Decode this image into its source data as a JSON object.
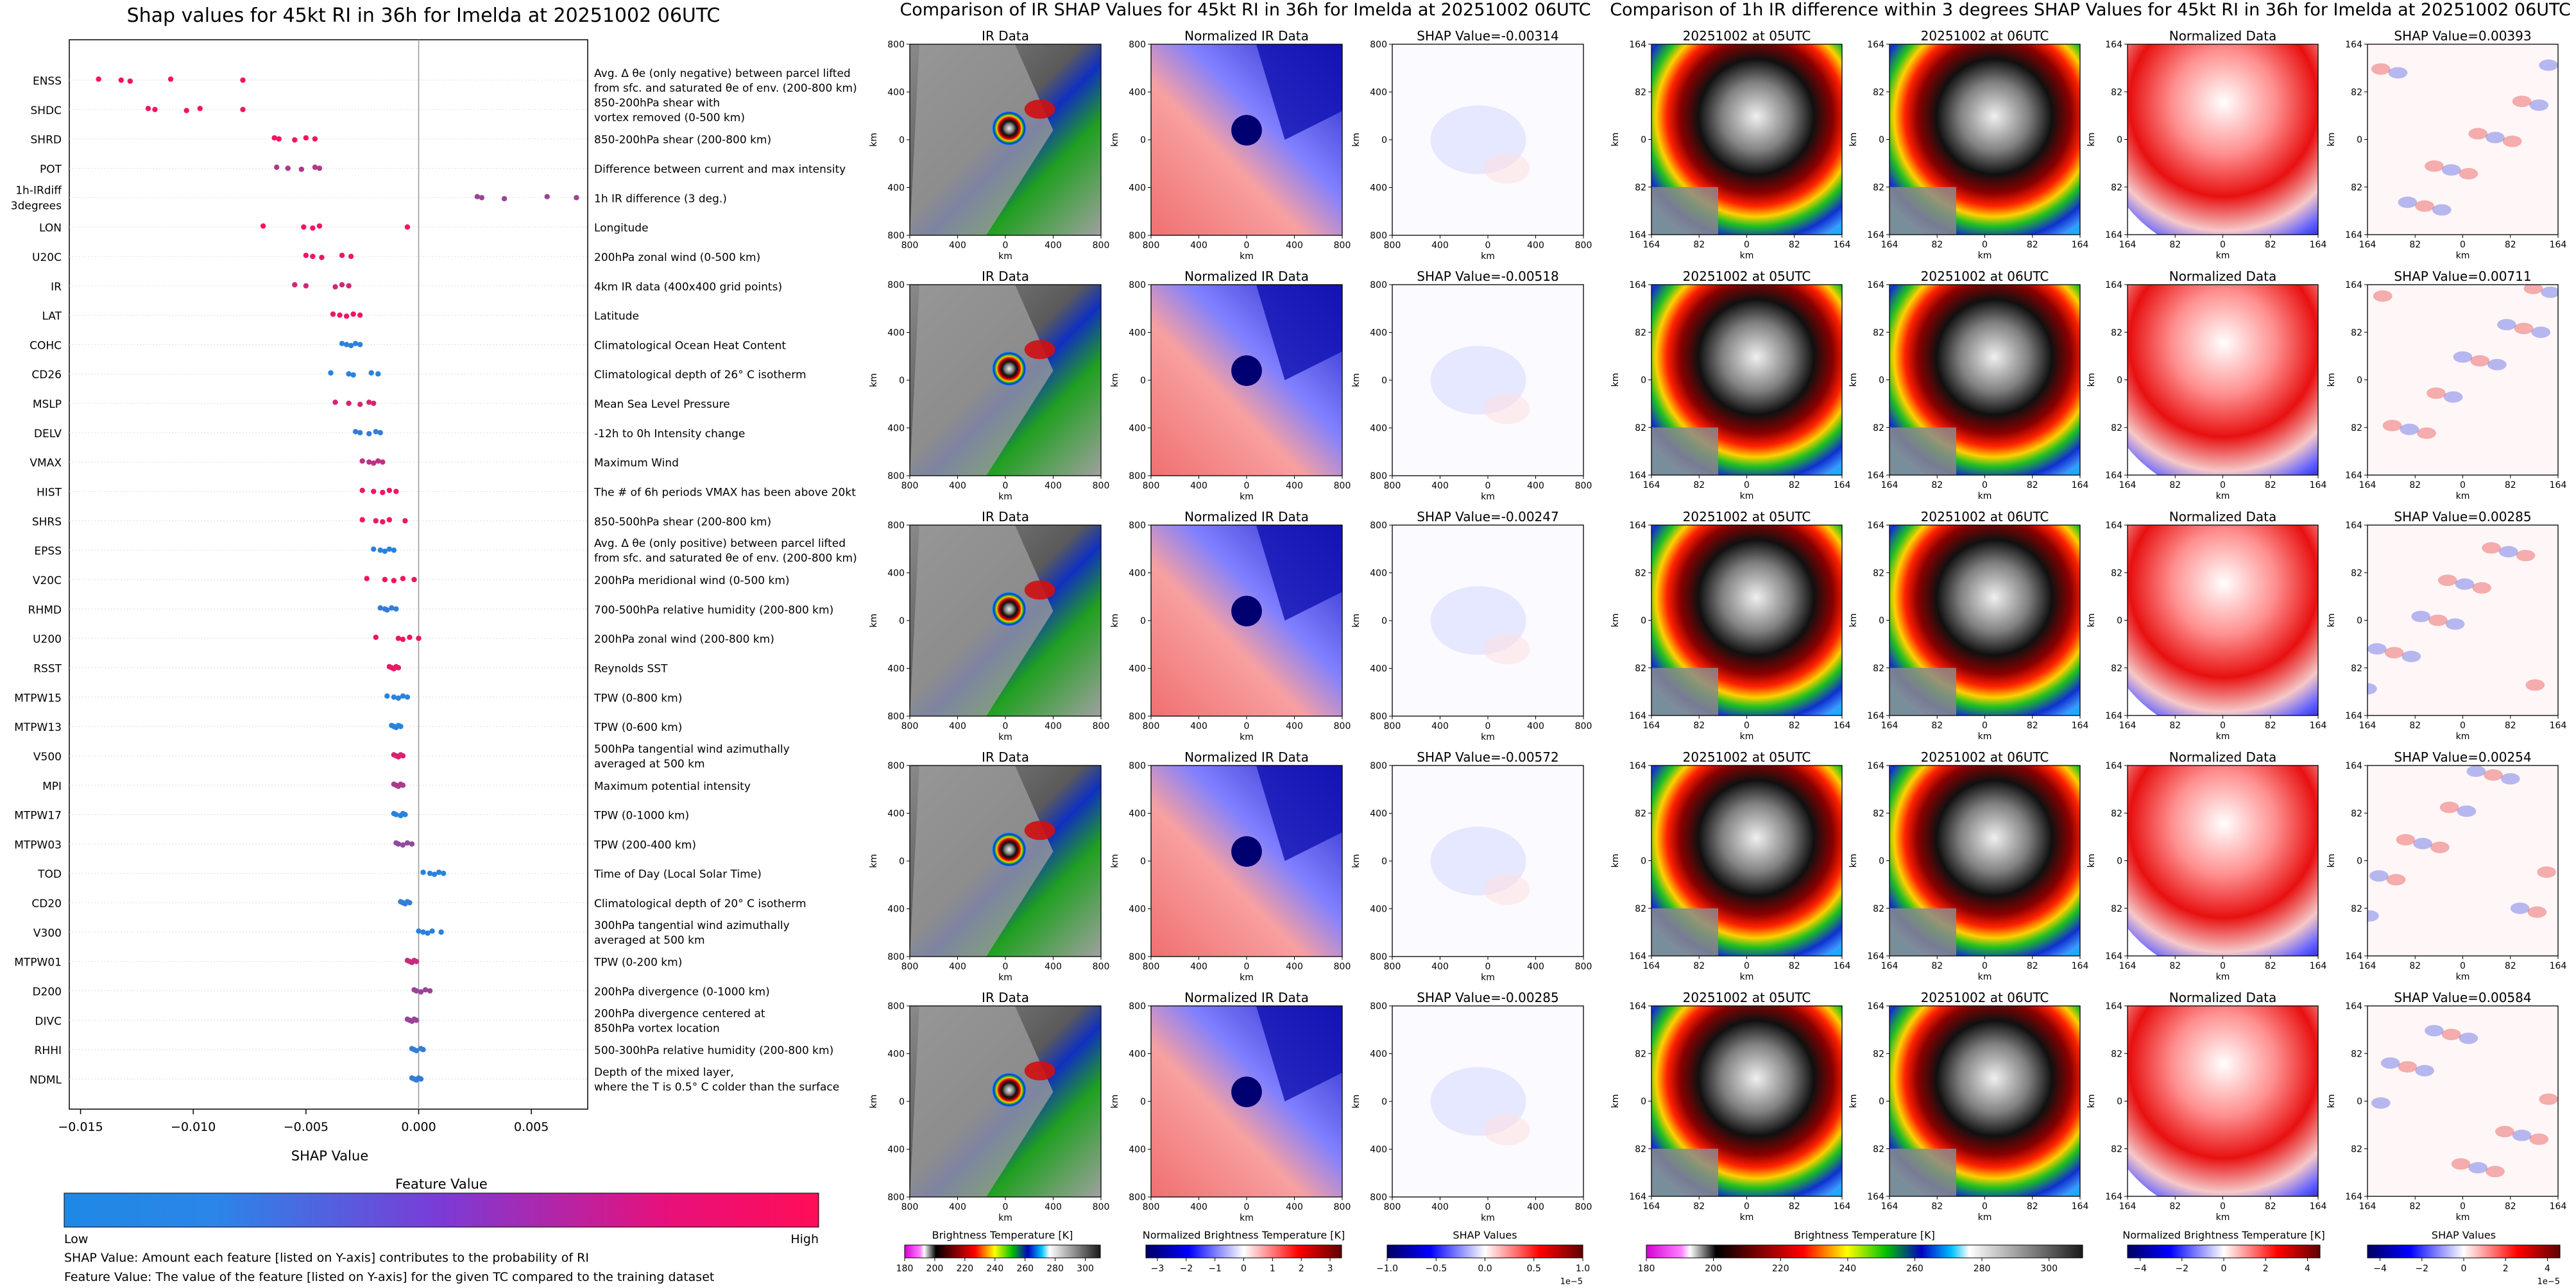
{
  "chart_data": [
    {
      "type": "scatter",
      "title": "Shap values for 45kt RI in 36h for Imelda at 20251002 06UTC",
      "xlabel": "SHAP Value",
      "xlim": [
        -0.0155,
        0.0075
      ],
      "xticks": [
        "−0.015",
        "−0.010",
        "−0.005",
        "0.000",
        "0.005"
      ],
      "xtick_values": [
        -0.015,
        -0.01,
        -0.005,
        0.0,
        0.005
      ],
      "colorbar": {
        "title": "Feature Value",
        "low_label": "Low",
        "high_label": "High",
        "low_color": "#1e88e5",
        "high_color": "#ff0d57"
      },
      "notes": [
        "SHAP Value: Amount each feature [listed on Y-axis] contributes to the probability of RI",
        "Feature Value: The value of the feature [listed on Y-axis] for the given TC compared to the training dataset"
      ],
      "features": [
        {
          "name": "ENSS",
          "desc": [
            "Avg. Δ θe (only negative) between parcel lifted",
            "from sfc. and saturated θe of env. (200-800 km)"
          ],
          "values": [
            -0.0142,
            -0.0132,
            -0.0128,
            -0.011,
            -0.0078
          ],
          "level": 0.95
        },
        {
          "name": "SHDC",
          "desc": [
            "850-200hPa shear with",
            "vortex removed (0-500 km)"
          ],
          "values": [
            -0.012,
            -0.0117,
            -0.0103,
            -0.0097,
            -0.0078
          ],
          "level": 0.92
        },
        {
          "name": "SHRD",
          "desc": [
            "850-200hPa shear (200-800 km)"
          ],
          "values": [
            -0.0064,
            -0.0062,
            -0.0055,
            -0.005,
            -0.0046
          ],
          "level": 0.93
        },
        {
          "name": "POT",
          "desc": [
            "Difference between current and max intensity"
          ],
          "values": [
            -0.0063,
            -0.0058,
            -0.0052,
            -0.0046,
            -0.0044
          ],
          "level": 0.65
        },
        {
          "name": "1h-IRdiff\n3degrees",
          "desc": [
            "1h IR difference (3 deg.)"
          ],
          "values": [
            0.0026,
            0.0028,
            0.0038,
            0.0057,
            0.007
          ],
          "level": 0.55
        },
        {
          "name": "LON",
          "desc": [
            "Longitude"
          ],
          "values": [
            -0.0069,
            -0.0051,
            -0.0047,
            -0.0044,
            -0.0005
          ],
          "level": 0.92
        },
        {
          "name": "U20C",
          "desc": [
            "200hPa zonal wind (0-500 km)"
          ],
          "values": [
            -0.005,
            -0.0047,
            -0.0043,
            -0.0034,
            -0.003
          ],
          "level": 0.9
        },
        {
          "name": "IR",
          "desc": [
            "4km IR data (400x400 grid points)"
          ],
          "values": [
            -0.0055,
            -0.005,
            -0.0037,
            -0.0034,
            -0.0031
          ],
          "level": 0.78
        },
        {
          "name": "LAT",
          "desc": [
            "Latitude"
          ],
          "values": [
            -0.0038,
            -0.0035,
            -0.0032,
            -0.0029,
            -0.0026
          ],
          "level": 0.93
        },
        {
          "name": "COHC",
          "desc": [
            "Climatological Ocean Heat Content"
          ],
          "values": [
            -0.0034,
            -0.0032,
            -0.003,
            -0.0028,
            -0.0026
          ],
          "level": 0.05
        },
        {
          "name": "CD26",
          "desc": [
            "Climatological depth of 26° C isotherm"
          ],
          "values": [
            -0.0039,
            -0.0031,
            -0.0029,
            -0.0021,
            -0.0018
          ],
          "level": 0.05
        },
        {
          "name": "MSLP",
          "desc": [
            "Mean Sea Level Pressure"
          ],
          "values": [
            -0.0037,
            -0.0031,
            -0.0026,
            -0.0022,
            -0.002
          ],
          "level": 0.8
        },
        {
          "name": "DELV",
          "desc": [
            "-12h to 0h Intensity change"
          ],
          "values": [
            -0.0028,
            -0.0026,
            -0.0022,
            -0.0019,
            -0.0017
          ],
          "level": 0.1
        },
        {
          "name": "VMAX",
          "desc": [
            "Maximum Wind"
          ],
          "values": [
            -0.0025,
            -0.0022,
            -0.002,
            -0.0018,
            -0.0016
          ],
          "level": 0.7
        },
        {
          "name": "HIST",
          "desc": [
            "The # of 6h periods VMAX has been above 20kt"
          ],
          "values": [
            -0.0025,
            -0.002,
            -0.0016,
            -0.0013,
            -0.001
          ],
          "level": 0.92
        },
        {
          "name": "SHRS",
          "desc": [
            "850-500hPa shear (200-800 km)"
          ],
          "values": [
            -0.0025,
            -0.0019,
            -0.0016,
            -0.0013,
            -0.0006
          ],
          "level": 0.92
        },
        {
          "name": "EPSS",
          "desc": [
            "Avg. Δ θe (only positive) between parcel lifted",
            "from sfc. and saturated θe of env. (200-800 km)"
          ],
          "values": [
            -0.002,
            -0.0017,
            -0.0015,
            -0.0013,
            -0.0011
          ],
          "level": 0.05
        },
        {
          "name": "V20C",
          "desc": [
            "200hPa meridional wind (0-500 km)"
          ],
          "values": [
            -0.0023,
            -0.0015,
            -0.0011,
            -0.0007,
            -0.0002
          ],
          "level": 0.95
        },
        {
          "name": "RHMD",
          "desc": [
            "700-500hPa relative humidity (200-800 km)"
          ],
          "values": [
            -0.0017,
            -0.0015,
            -0.0014,
            -0.0012,
            -0.001
          ],
          "level": 0.1
        },
        {
          "name": "U200",
          "desc": [
            "200hPa zonal wind (200-800 km)"
          ],
          "values": [
            -0.0019,
            -0.0009,
            -0.0007,
            -0.0004,
            0.0
          ],
          "level": 0.93
        },
        {
          "name": "RSST",
          "desc": [
            "Reynolds SST"
          ],
          "values": [
            -0.0013,
            -0.0012,
            -0.0011,
            -0.001,
            -0.0009
          ],
          "level": 0.88
        },
        {
          "name": "MTPW15",
          "desc": [
            "TPW (0-800 km)"
          ],
          "values": [
            -0.0014,
            -0.0011,
            -0.0009,
            -0.0007,
            -0.0005
          ],
          "level": 0.05
        },
        {
          "name": "MTPW13",
          "desc": [
            "TPW (0-600 km)"
          ],
          "values": [
            -0.0012,
            -0.0011,
            -0.001,
            -0.0009,
            -0.0008
          ],
          "level": 0.05
        },
        {
          "name": "V500",
          "desc": [
            "500hPa tangential wind azimuthally",
            "averaged at 500 km"
          ],
          "values": [
            -0.0011,
            -0.001,
            -0.0009,
            -0.0008,
            -0.0007
          ],
          "level": 0.85
        },
        {
          "name": "MPI",
          "desc": [
            "Maximum potential intensity"
          ],
          "values": [
            -0.0011,
            -0.001,
            -0.0009,
            -0.0008,
            -0.0007
          ],
          "level": 0.62
        },
        {
          "name": "MTPW17",
          "desc": [
            "TPW (0-1000 km)"
          ],
          "values": [
            -0.0011,
            -0.001,
            -0.0008,
            -0.0007,
            -0.0006
          ],
          "level": 0.05
        },
        {
          "name": "MTPW03",
          "desc": [
            "TPW (200-400 km)"
          ],
          "values": [
            -0.001,
            -0.0009,
            -0.0007,
            -0.0005,
            -0.0003
          ],
          "level": 0.5
        },
        {
          "name": "TOD",
          "desc": [
            "Time of Day (Local Solar Time)"
          ],
          "values": [
            0.0002,
            0.0005,
            0.0007,
            0.0009,
            0.0011
          ],
          "level": 0.05
        },
        {
          "name": "CD20",
          "desc": [
            "Climatological depth of 20° C isotherm"
          ],
          "values": [
            -0.0008,
            -0.0007,
            -0.0006,
            -0.0005,
            -0.0004
          ],
          "level": 0.1
        },
        {
          "name": "V300",
          "desc": [
            "300hPa tangential wind azimuthally",
            "averaged at 500 km"
          ],
          "values": [
            0.0,
            0.0002,
            0.0004,
            0.0006,
            0.001
          ],
          "level": 0.05
        },
        {
          "name": "MTPW01",
          "desc": [
            "TPW (0-200 km)"
          ],
          "values": [
            -0.0005,
            -0.0004,
            -0.0003,
            -0.0002,
            -0.0001
          ],
          "level": 0.75
        },
        {
          "name": "D200",
          "desc": [
            "200hPa divergence (0-1000 km)"
          ],
          "values": [
            -0.0002,
            -0.0001,
            0.0001,
            0.0003,
            0.0005
          ],
          "level": 0.55
        },
        {
          "name": "DIVC",
          "desc": [
            "200hPa divergence centered at",
            "850hPa vortex location"
          ],
          "values": [
            -0.0005,
            -0.0004,
            -0.0003,
            -0.0002,
            -0.0001
          ],
          "level": 0.55
        },
        {
          "name": "RHHI",
          "desc": [
            "500-300hPa relative humidity (200-800 km)"
          ],
          "values": [
            -0.0003,
            -0.0002,
            -0.0001,
            0.0001,
            0.0002
          ],
          "level": 0.1
        },
        {
          "name": "NDML",
          "desc": [
            "Depth of the mixed layer,",
            "where the T is 0.5° C colder than the surface"
          ],
          "values": [
            -0.0003,
            -0.0002,
            -0.0001,
            0.0,
            0.0001
          ],
          "level": 0.1
        }
      ]
    },
    {
      "type": "heatmap",
      "title": "Comparison of IR SHAP Values for 45kt RI in 36h for Imelda at 20251002 06UTC",
      "column_titles": [
        "IR Data",
        "Normalized IR Data"
      ],
      "shap_titles": [
        "SHAP Value=-0.00314",
        "SHAP Value=-0.00518",
        "SHAP Value=-0.00247",
        "SHAP Value=-0.00572",
        "SHAP Value=-0.00285"
      ],
      "tick_labels": [
        "800",
        "400",
        "0",
        "400",
        "800"
      ],
      "axis_label": "km",
      "colorbars": [
        {
          "label": "Brightness Temperature [K]",
          "ticks": [
            "180",
            "200",
            "220",
            "240",
            "260",
            "280",
            "300"
          ],
          "min": 180,
          "max": 310
        },
        {
          "label": "Normalized Brightness Temperature [K]",
          "ticks": [
            "−3",
            "−2",
            "−1",
            "0",
            "1",
            "2",
            "3"
          ],
          "min": -3.4,
          "max": 3.4
        },
        {
          "label": "SHAP Values",
          "ticks": [
            "−1.0",
            "−0.5",
            "0.0",
            "0.5",
            "1.0"
          ],
          "min": -1.0,
          "max": 1.0,
          "multiplier": "1e−5"
        }
      ]
    },
    {
      "type": "heatmap",
      "title": "Comparison of 1h IR difference within 3 degrees SHAP Values for 45kt RI in 36h for Imelda at 20251002 06UTC",
      "column_titles": [
        "20251002 at 05UTC",
        "20251002 at 06UTC",
        "Normalized Data"
      ],
      "shap_titles": [
        "SHAP Value=0.00393",
        "SHAP Value=0.00711",
        "SHAP Value=0.00285",
        "SHAP Value=0.00254",
        "SHAP Value=0.00584"
      ],
      "tick_labels": [
        "164",
        "82",
        "0",
        "82",
        "164"
      ],
      "axis_label": "km",
      "colorbars": [
        {
          "label": "Brightness Temperature [K]",
          "ticks": [
            "180",
            "200",
            "220",
            "240",
            "260",
            "280",
            "300"
          ],
          "min": 180,
          "max": 310
        },
        {
          "label": "Normalized Brightness Temperature [K]",
          "ticks": [
            "−4",
            "−2",
            "0",
            "2",
            "4"
          ],
          "min": -4.6,
          "max": 4.6
        },
        {
          "label": "SHAP Values",
          "ticks": [
            "−4",
            "−2",
            "0",
            "2",
            "4"
          ],
          "min": -4.6,
          "max": 4.6,
          "multiplier": "1e−5"
        }
      ]
    }
  ]
}
